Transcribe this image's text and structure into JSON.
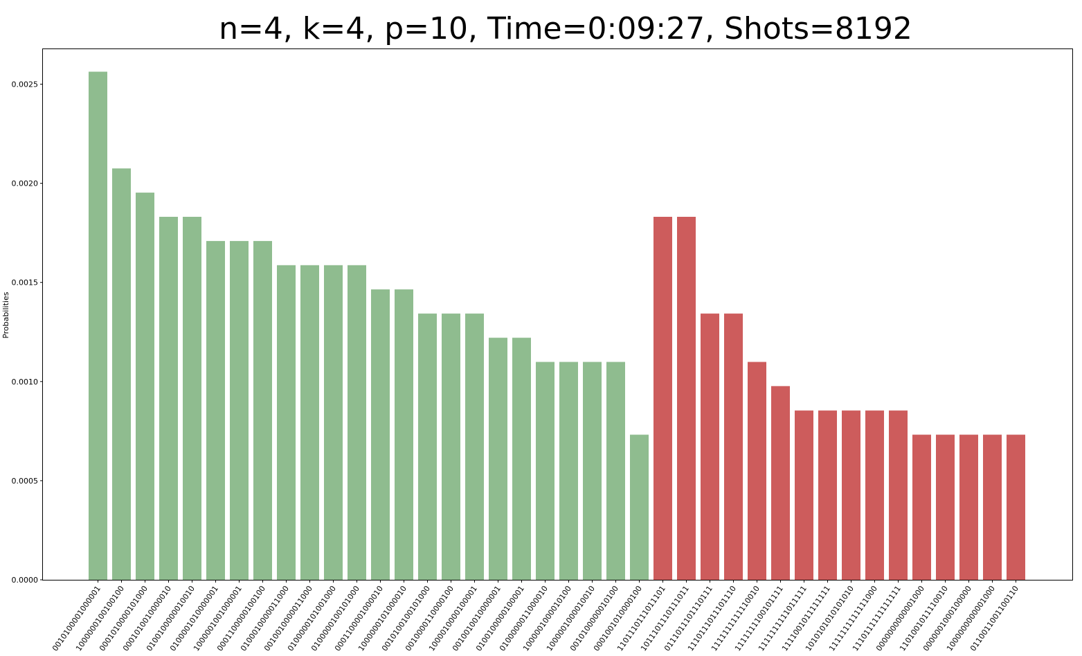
{
  "chart_data": {
    "type": "bar",
    "title": "n=4, k=4, p=10, Time=0:09:27, Shots=8192",
    "xlabel": "",
    "ylabel": "Probabilities",
    "ylim": [
      0,
      0.00268
    ],
    "yticks": [
      "0.0000",
      "0.0005",
      "0.0010",
      "0.0015",
      "0.0020",
      "0.0025"
    ],
    "ytick_values": [
      0,
      0.0005,
      0.001,
      0.0015,
      0.002,
      0.0025
    ],
    "grid": false,
    "legend": "none",
    "colors": {
      "green": "#8fbc8f",
      "red": "#cd5c5c"
    },
    "categories": [
      "0010100001000001",
      "1000000100100100",
      "0001010000101000",
      "0001010010000010",
      "0100100000010010",
      "0100001010000001",
      "1000001001000001",
      "0001100000100100",
      "0100010000011000",
      "0010010000011000",
      "0100000101001000",
      "0100000100101000",
      "0001100001000010",
      "1000000101000010",
      "0010100100101000",
      "0010000110000100",
      "1000010000100001",
      "0010010010000001",
      "0100100000100001",
      "0100000011000010",
      "1000001000010100",
      "1000001000010010",
      "0010100000010100",
      "0001001010000100",
      "1101110111011101",
      "1011101110111011",
      "0111011101110111",
      "1110111011101110",
      "1111111111110010",
      "1111111100101111",
      "1111111111011111",
      "1111001011111111",
      "1010101010101010",
      "1111111111111000",
      "1110111111111111",
      "0000000000001000",
      "1101001011110010",
      "0000001000100000",
      "1000000000001000",
      "0110011001100110"
    ],
    "values": [
      0.002563,
      0.002075,
      0.001953,
      0.001831,
      0.001831,
      0.001709,
      0.001709,
      0.001709,
      0.001587,
      0.001587,
      0.001587,
      0.001587,
      0.001465,
      0.001465,
      0.001343,
      0.001343,
      0.001343,
      0.001221,
      0.001221,
      0.001099,
      0.001099,
      0.001099,
      0.001099,
      0.000732,
      0.001831,
      0.001831,
      0.001343,
      0.001343,
      0.001099,
      0.000977,
      0.000854,
      0.000854,
      0.000854,
      0.000854,
      0.000854,
      0.000732,
      0.000732,
      0.000732,
      0.000732,
      0.000732
    ],
    "bar_colors": [
      "green",
      "green",
      "green",
      "green",
      "green",
      "green",
      "green",
      "green",
      "green",
      "green",
      "green",
      "green",
      "green",
      "green",
      "green",
      "green",
      "green",
      "green",
      "green",
      "green",
      "green",
      "green",
      "green",
      "green",
      "red",
      "red",
      "red",
      "red",
      "red",
      "red",
      "red",
      "red",
      "red",
      "red",
      "red",
      "red",
      "red",
      "red",
      "red",
      "red"
    ]
  }
}
